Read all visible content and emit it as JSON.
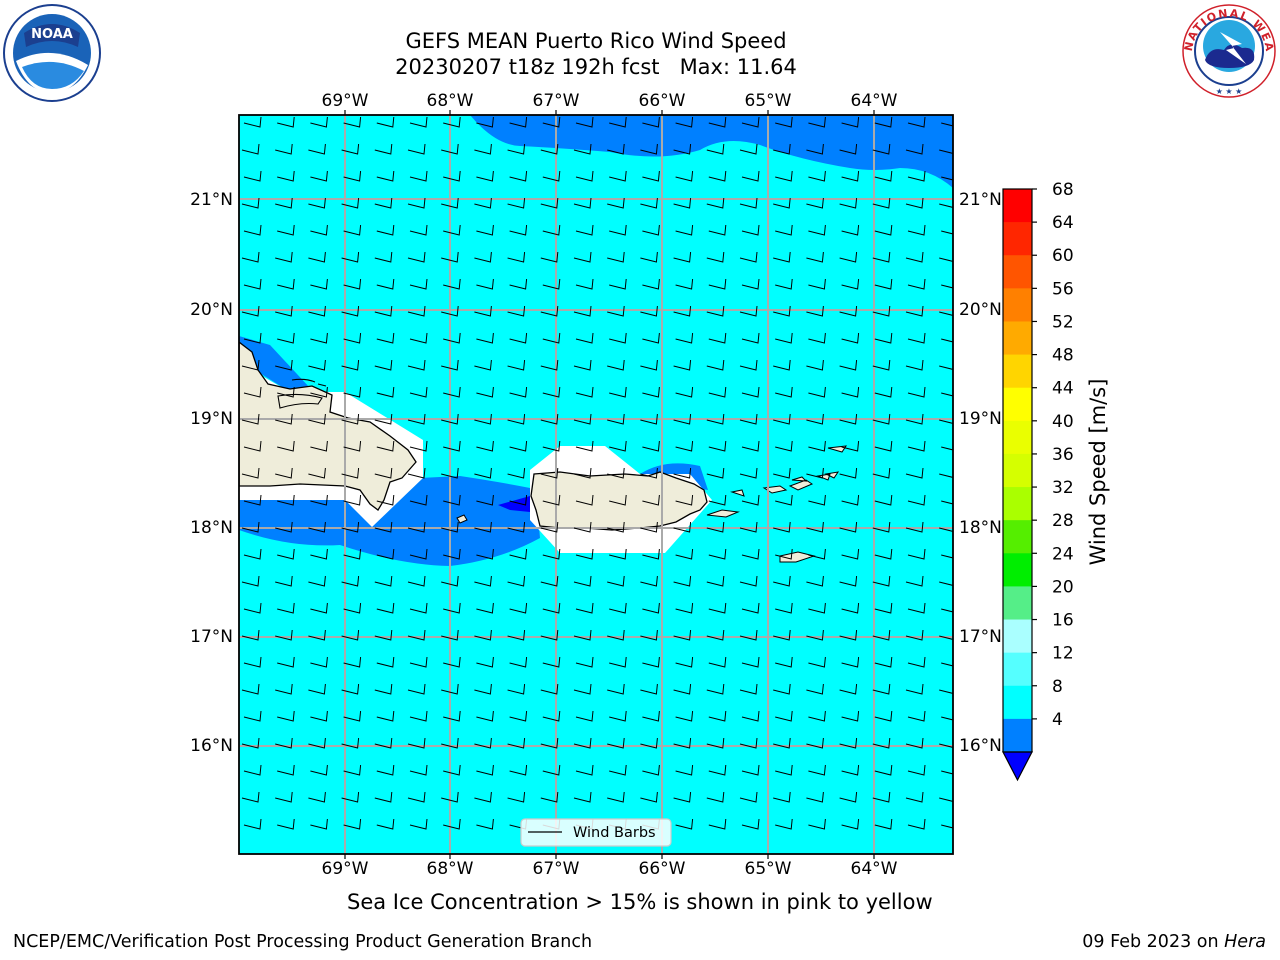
{
  "title": {
    "line1": "GEFS MEAN Puerto Rico Wind Speed",
    "line2": "20230207 t18z 192h fcst   Max: 11.64"
  },
  "map": {
    "lon_labels": [
      "69°W",
      "68°W",
      "67°W",
      "66°W",
      "65°W",
      "64°W"
    ],
    "lat_labels": [
      "21°N",
      "20°N",
      "19°N",
      "18°N",
      "17°N",
      "16°N"
    ],
    "legend_label": "Wind Barbs",
    "ocean_color": "#00ffff",
    "band_color": "#0080ff",
    "land_color": "#efedda"
  },
  "colorbar": {
    "label": "Wind Speed [m/s]",
    "ticks": [
      "68",
      "64",
      "60",
      "56",
      "52",
      "48",
      "44",
      "40",
      "36",
      "32",
      "28",
      "24",
      "20",
      "16",
      "12",
      "8",
      "4"
    ],
    "colors": [
      "#ff0000",
      "#ff2600",
      "#ff5500",
      "#ff8000",
      "#ffaa00",
      "#ffd500",
      "#ffff00",
      "#eaff00",
      "#d5ff00",
      "#aaff00",
      "#55ee00",
      "#00ee00",
      "#55ee88",
      "#aaffff",
      "#55ffff",
      "#00ffff",
      "#0080ff"
    ],
    "extend_color": "#0000ff"
  },
  "caption": "Sea Ice Concentration > 15% is shown in pink to yellow",
  "footer": {
    "left": "NCEP/EMC/Verification Post Processing Product Generation Branch",
    "right_date": "09 Feb 2023 on ",
    "right_machine": "Hera"
  },
  "logos": {
    "noaa": "NOAA",
    "nws": "NATIONAL WEATHER SERVICE"
  }
}
